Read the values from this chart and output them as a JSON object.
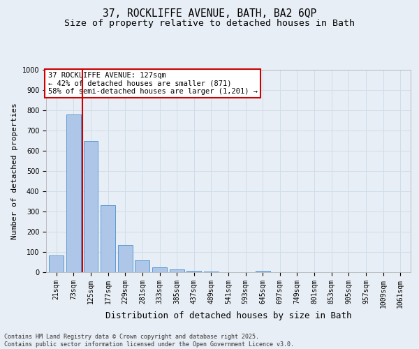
{
  "title_line1": "37, ROCKLIFFE AVENUE, BATH, BA2 6QP",
  "title_line2": "Size of property relative to detached houses in Bath",
  "xlabel": "Distribution of detached houses by size in Bath",
  "ylabel": "Number of detached properties",
  "categories": [
    "21sqm",
    "73sqm",
    "125sqm",
    "177sqm",
    "229sqm",
    "281sqm",
    "333sqm",
    "385sqm",
    "437sqm",
    "489sqm",
    "541sqm",
    "593sqm",
    "645sqm",
    "697sqm",
    "749sqm",
    "801sqm",
    "853sqm",
    "905sqm",
    "957sqm",
    "1009sqm",
    "1061sqm"
  ],
  "values": [
    83,
    780,
    648,
    330,
    135,
    58,
    25,
    14,
    7,
    3,
    0,
    0,
    8,
    0,
    0,
    0,
    0,
    0,
    0,
    0,
    0
  ],
  "bar_color": "#aec6e8",
  "bar_edge_color": "#5a9ad4",
  "vline_x_index": 2,
  "vline_color": "#cc0000",
  "annotation_text": "37 ROCKLIFFE AVENUE: 127sqm\n← 42% of detached houses are smaller (871)\n58% of semi-detached houses are larger (1,201) →",
  "annotation_box_color": "#ffffff",
  "annotation_box_edge": "#cc0000",
  "ylim": [
    0,
    1000
  ],
  "yticks": [
    0,
    100,
    200,
    300,
    400,
    500,
    600,
    700,
    800,
    900,
    1000
  ],
  "grid_color": "#d0dde8",
  "bg_color": "#e8eef5",
  "footer_text": "Contains HM Land Registry data © Crown copyright and database right 2025.\nContains public sector information licensed under the Open Government Licence v3.0.",
  "title_fontsize": 10.5,
  "subtitle_fontsize": 9.5,
  "xlabel_fontsize": 9,
  "ylabel_fontsize": 8,
  "tick_fontsize": 7,
  "annotation_fontsize": 7.5,
  "footer_fontsize": 6
}
